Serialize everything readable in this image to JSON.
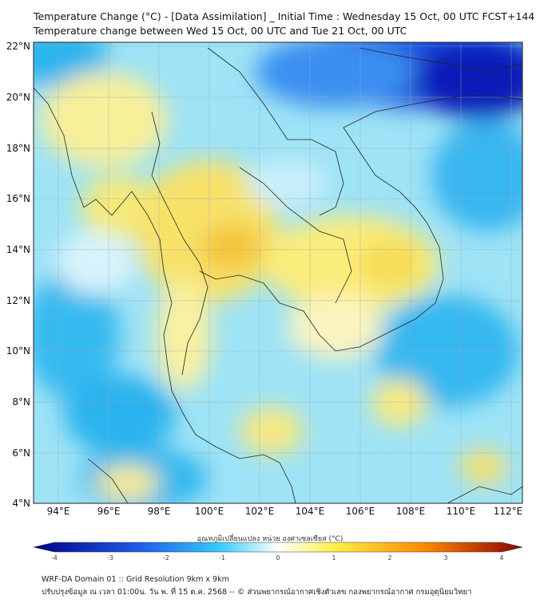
{
  "title_line1": "Temperature Change (°C) - [Data Assimilation] _ Initial Time : Wednesday 15 Oct, 00 UTC FCST+144",
  "title_line2": "Temperature change between Wed 15 Oct, 00 UTC and Tue 21 Oct, 00 UTC",
  "lat_labels": [
    "22°N",
    "20°N",
    "18°N",
    "16°N",
    "14°N",
    "12°N",
    "10°N",
    "8°N",
    "6°N",
    "4°N"
  ],
  "lon_labels": [
    "94°E",
    "96°E",
    "98°E",
    "100°E",
    "102°E",
    "104°E",
    "106°E",
    "108°E",
    "110°E",
    "112°E"
  ],
  "colorbar": {
    "label": "อุณหภูมิเปลี่ยนแปลง หน่วย องศาเซลเซียส (°C)",
    "ticks": [
      "-4",
      "-3",
      "-2",
      "-1",
      "0",
      "1",
      "2",
      "3",
      "4"
    ],
    "colors": {
      "cold": "#00008b",
      "cool": "#1e90ff",
      "cyan": "#33ccff",
      "neutral": "#ffffff",
      "warm": "#ffee44",
      "hot": "#ff8800",
      "extreme": "#8b0000"
    }
  },
  "footer_line1": "WRF-DA Domain 01 :: Grid Resolution 9km x 9km",
  "footer_line2": "ปรับปรุงข้อมูล ณ เวลา 01:00น. วัน พ. ที่ 15 ต.ค. 2568 -- © ส่วนพยากรณ์อากาศเชิงตัวเลข กองพยากรณ์อากาศ กรมอุตุนิยมวิทยา"
}
